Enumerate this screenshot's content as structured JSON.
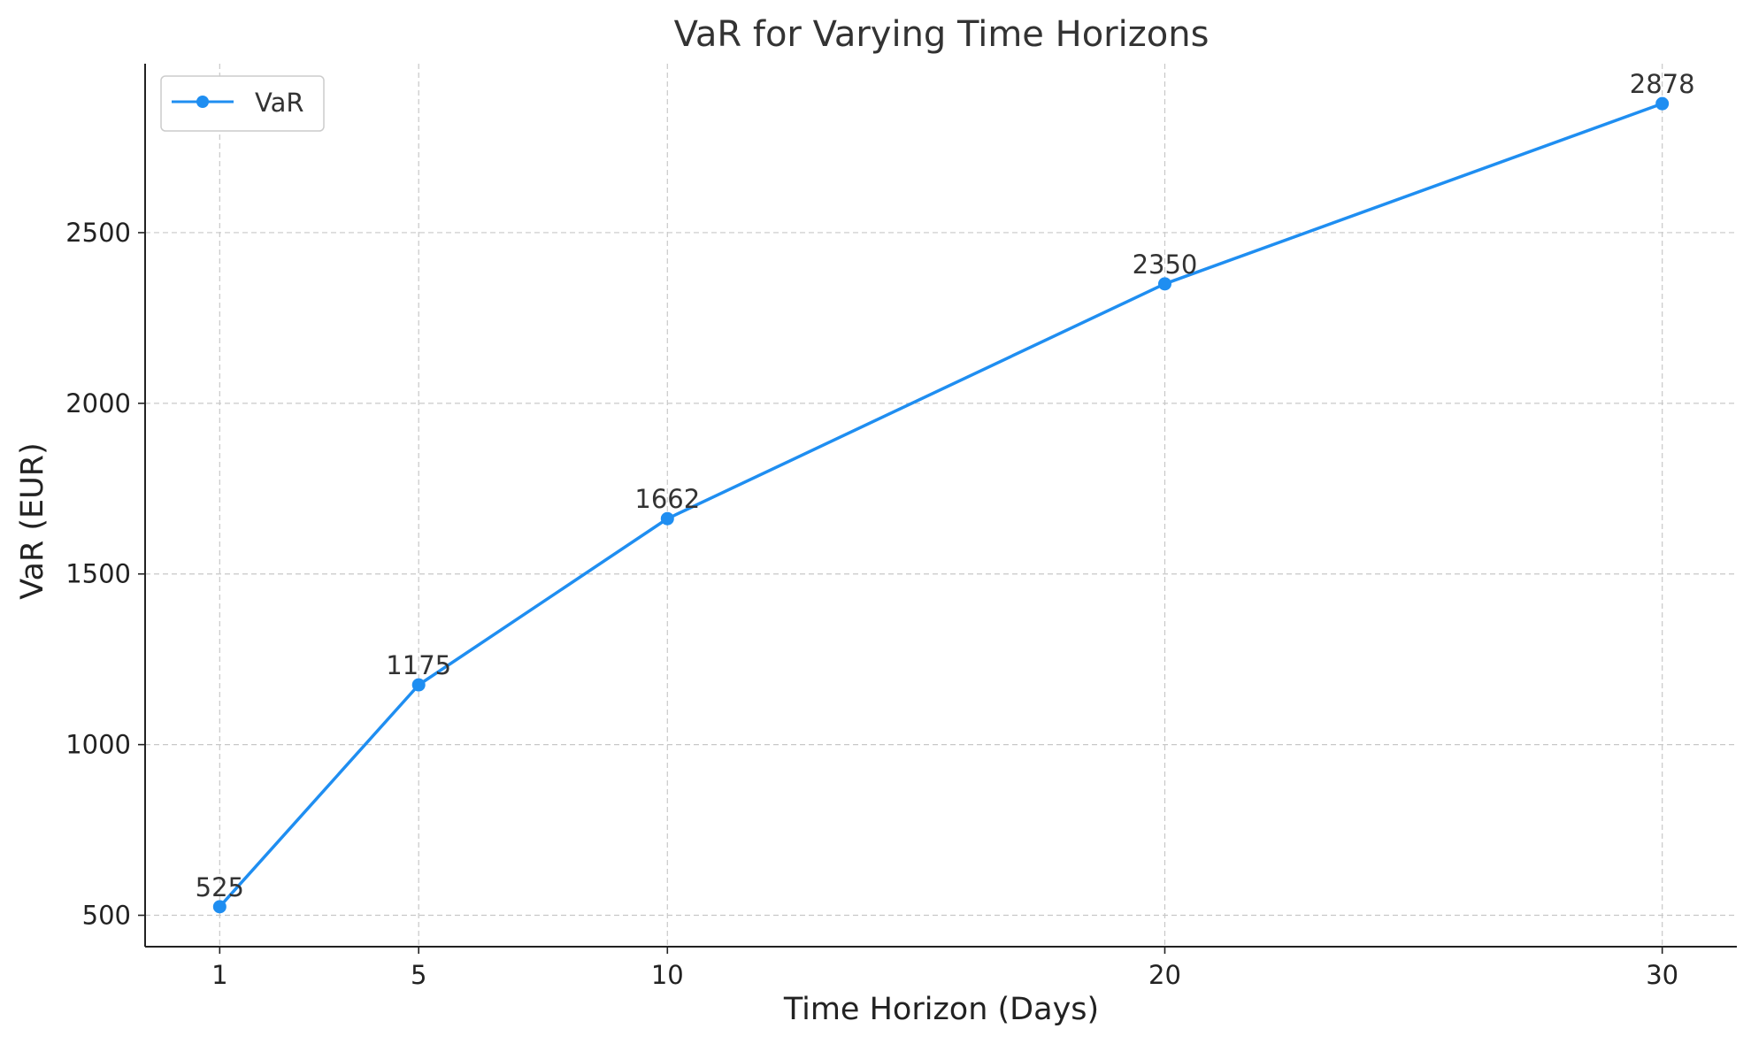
{
  "chart_data": {
    "type": "line",
    "title": "VaR for Varying Time Horizons",
    "xlabel": "Time Horizon (Days)",
    "ylabel": "VaR (EUR)",
    "x": [
      1,
      5,
      10,
      20,
      30
    ],
    "xticks": [
      1,
      5,
      10,
      20,
      30
    ],
    "xlim": [
      -0.5,
      31.5
    ],
    "yticks": [
      500,
      1000,
      1500,
      2000,
      2500
    ],
    "ylim": [
      408,
      2995
    ],
    "grid": true,
    "legend_position": "top-left",
    "series": [
      {
        "name": "VaR",
        "color": "#1f8ef1",
        "marker": "circle",
        "values": [
          525,
          1175,
          1662,
          2350,
          2878
        ],
        "data_labels": [
          "525",
          "1175",
          "1662",
          "2350",
          "2878"
        ]
      }
    ]
  }
}
